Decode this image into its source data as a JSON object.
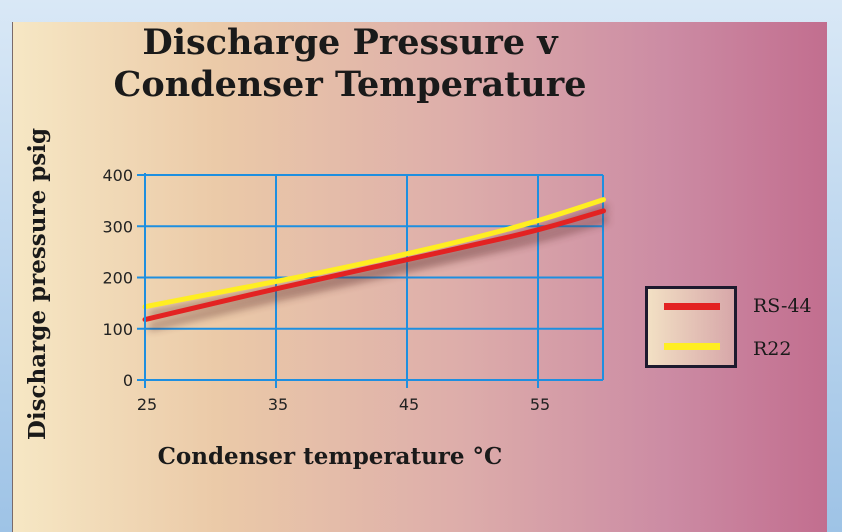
{
  "chart_data": {
    "type": "line",
    "title": "Discharge Pressure v Condenser Temperature",
    "xlabel": "Condenser temperature °C",
    "ylabel": "Discharge pressure psig",
    "xlim": [
      25,
      60
    ],
    "ylim": [
      0,
      400
    ],
    "xticks": [
      "25",
      "35",
      "45",
      "55"
    ],
    "yticks": [
      "0",
      "100",
      "200",
      "300",
      "400"
    ],
    "grid": true,
    "legend_position": "right",
    "series": [
      {
        "name": "RS-44",
        "color": "#e32222",
        "x": [
          25,
          30,
          35,
          40,
          45,
          50,
          55,
          60
        ],
        "y": [
          118,
          148,
          178,
          206,
          235,
          263,
          292,
          330
        ]
      },
      {
        "name": "R22",
        "color": "#ffee22",
        "x": [
          25,
          30,
          35,
          40,
          45,
          50,
          55,
          60
        ],
        "y": [
          143,
          168,
          192,
          218,
          246,
          276,
          310,
          352
        ]
      }
    ]
  }
}
